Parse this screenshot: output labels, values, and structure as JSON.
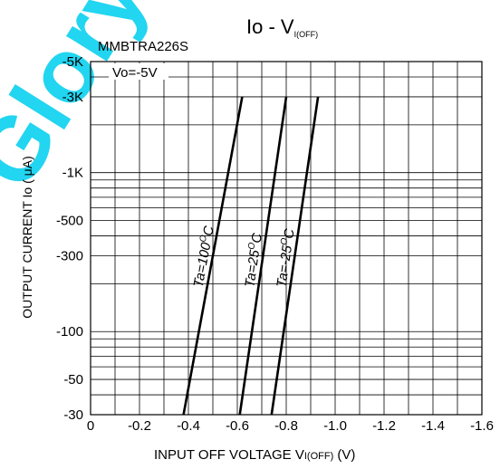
{
  "watermark": "Glory",
  "chart_data": {
    "type": "line",
    "title": "Io - V",
    "title_subscript": "I(OFF)",
    "device_label": "MMBTRA226S",
    "condition_label": "Vo=-5V",
    "xlabel": "INPUT OFF VOLTAGE V",
    "xlabel_subscript": "I(OFF)",
    "xlabel_unit": " (V)",
    "ylabel": "OUTPUT CURRENT Io ( μA)",
    "x_scale": "linear",
    "y_scale": "log",
    "xlim": [
      0,
      -1.6
    ],
    "ylim": [
      -30,
      -5000
    ],
    "x_ticks": [
      0,
      -0.2,
      -0.4,
      -0.6,
      -0.8,
      -1.0,
      -1.2,
      -1.4,
      -1.6
    ],
    "x_tick_labels": [
      "0",
      "-0.2",
      "-0.4",
      "-0.6",
      "-0.8",
      "-1.0",
      "-1.2",
      "-1.4",
      "-1.6"
    ],
    "y_tick_values": [
      -5000,
      -3000,
      -1000,
      -500,
      -300,
      -100,
      -50,
      -30
    ],
    "y_tick_labels": [
      "-5K",
      "-3K",
      "-1K",
      "-500",
      "-300",
      "-100",
      "-50",
      "-30"
    ],
    "grid": true,
    "series": [
      {
        "name": "Ta=100⁰C",
        "label_main": "Ta=100",
        "label_sup": "O",
        "label_tail": "C",
        "x": [
          -0.38,
          -0.62
        ],
        "y": [
          -30,
          -3000
        ]
      },
      {
        "name": "Ta=25⁰C",
        "label_main": "Ta=25",
        "label_sup": "O",
        "label_tail": "C",
        "x": [
          -0.61,
          -0.8
        ],
        "y": [
          -30,
          -3000
        ]
      },
      {
        "name": "Ta=-25⁰C",
        "label_main": "Ta=-25",
        "label_sup": "O",
        "label_tail": "C",
        "x": [
          -0.74,
          -0.93
        ],
        "y": [
          -30,
          -3000
        ]
      }
    ]
  }
}
